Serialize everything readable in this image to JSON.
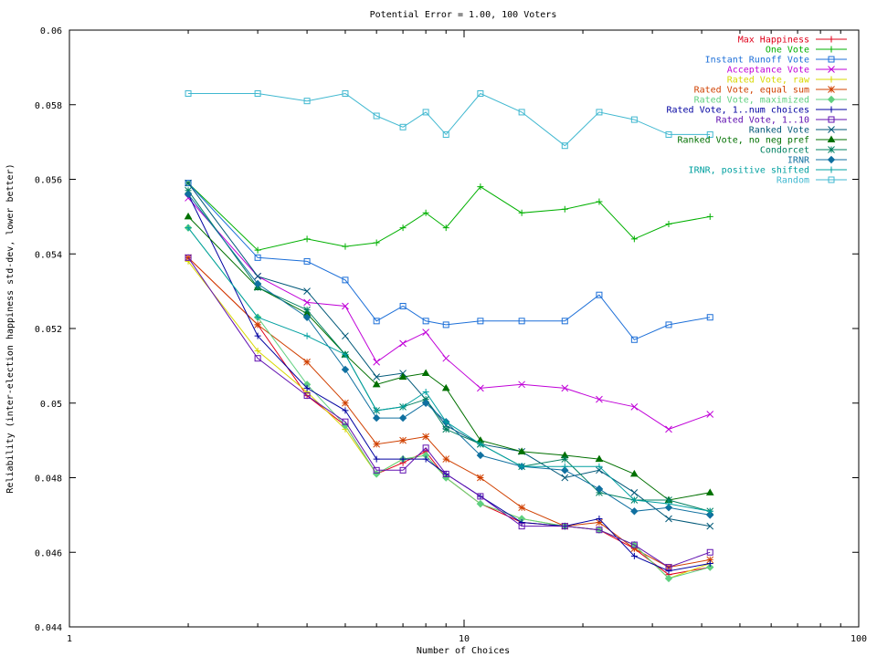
{
  "chart_data": {
    "type": "line",
    "title": "Potential Error = 1.00, 100 Voters",
    "xlabel": "Number of Choices",
    "ylabel": "Reliability (inter-election happiness std-dev, lower better)",
    "xscale": "log",
    "xlim": [
      1,
      100
    ],
    "ylim": [
      0.044,
      0.06
    ],
    "xticks": [
      "1",
      "10",
      "100"
    ],
    "yticks": [
      "0.044",
      "0.046",
      "0.048",
      "0.05",
      "0.052",
      "0.054",
      "0.056",
      "0.058",
      "0.06"
    ],
    "grid": false,
    "legend_position": "top-right",
    "x": [
      2,
      3,
      4,
      5,
      6,
      7,
      8,
      9,
      11,
      14,
      18,
      22,
      27,
      33,
      42
    ],
    "series": [
      {
        "name": "Max Happiness",
        "color": "#e0001a",
        "marker": "plus",
        "values": [
          0.0539,
          0.0521,
          0.0502,
          0.0494,
          0.0481,
          0.0484,
          0.0487,
          0.048,
          0.0473,
          0.0468,
          0.0467,
          0.0466,
          0.0461,
          0.0454,
          0.0456
        ]
      },
      {
        "name": "One Vote",
        "color": "#00b000",
        "marker": "plus",
        "values": [
          0.0559,
          0.0541,
          0.0544,
          0.0542,
          0.0543,
          0.0547,
          0.0551,
          0.0547,
          0.0558,
          0.0551,
          0.0552,
          0.0554,
          0.0544,
          0.0548,
          0.055
        ]
      },
      {
        "name": "Instant Runoff Vote",
        "color": "#1c6fd8",
        "marker": "square",
        "values": [
          0.0559,
          0.0539,
          0.0538,
          0.0533,
          0.0522,
          0.0526,
          0.0522,
          0.0521,
          0.0522,
          0.0522,
          0.0522,
          0.0529,
          0.0517,
          0.0521,
          0.0523
        ]
      },
      {
        "name": "Acceptance Vote",
        "color": "#c000d8",
        "marker": "x",
        "values": [
          0.0555,
          0.0534,
          0.0527,
          0.0526,
          0.0511,
          0.0516,
          0.0519,
          0.0512,
          0.0504,
          0.0505,
          0.0504,
          0.0501,
          0.0499,
          0.0493,
          0.0497
        ]
      },
      {
        "name": "Rated Vote, raw",
        "color": "#d8d800",
        "marker": "plus",
        "values": [
          0.0538,
          0.0514,
          0.0503,
          0.0493,
          0.0481,
          0.0485,
          0.0486,
          0.048,
          0.0473,
          0.0469,
          0.0467,
          0.0466,
          0.0462,
          0.0453,
          0.0457
        ]
      },
      {
        "name": "Rated Vote, equal sum",
        "color": "#d04000",
        "marker": "star",
        "values": [
          0.0539,
          0.0521,
          0.0511,
          0.05,
          0.0489,
          0.049,
          0.0491,
          0.0485,
          0.048,
          0.0472,
          0.0467,
          0.0468,
          0.0461,
          0.0456,
          0.0458
        ]
      },
      {
        "name": "Rated Vote, maximized",
        "color": "#60d080",
        "marker": "diamond",
        "values": [
          0.0547,
          0.0523,
          0.0505,
          0.0494,
          0.0481,
          0.0485,
          0.0486,
          0.048,
          0.0473,
          0.0469,
          0.0467,
          0.0466,
          0.0462,
          0.0453,
          0.0456
        ]
      },
      {
        "name": "Rated Vote, 1..num choices",
        "color": "#0000a0",
        "marker": "plus",
        "values": [
          0.0556,
          0.0518,
          0.0504,
          0.0498,
          0.0485,
          0.0485,
          0.0485,
          0.0481,
          0.0475,
          0.0468,
          0.0467,
          0.0469,
          0.0459,
          0.0455,
          0.0457
        ]
      },
      {
        "name": "Rated Vote, 1..10",
        "color": "#6010b0",
        "marker": "square",
        "values": [
          0.0539,
          0.0512,
          0.0502,
          0.0495,
          0.0482,
          0.0482,
          0.0488,
          0.0481,
          0.0475,
          0.0467,
          0.0467,
          0.0466,
          0.0462,
          0.0456,
          0.046
        ]
      },
      {
        "name": "Ranked Vote",
        "color": "#005878",
        "marker": "x",
        "values": [
          0.0559,
          0.0534,
          0.053,
          0.0518,
          0.0507,
          0.0508,
          0.0501,
          0.0494,
          0.0489,
          0.0487,
          0.048,
          0.0482,
          0.0476,
          0.0469,
          0.0467
        ]
      },
      {
        "name": "Ranked Vote, no neg pref",
        "color": "#007000",
        "marker": "triangle",
        "values": [
          0.055,
          0.0531,
          0.0524,
          0.0513,
          0.0505,
          0.0507,
          0.0508,
          0.0504,
          0.049,
          0.0487,
          0.0486,
          0.0485,
          0.0481,
          0.0474,
          0.0476
        ]
      },
      {
        "name": "Condorcet",
        "color": "#008060",
        "marker": "star",
        "values": [
          0.0557,
          0.0531,
          0.0525,
          0.0513,
          0.0498,
          0.0499,
          0.0501,
          0.0493,
          0.0489,
          0.0483,
          0.0485,
          0.0476,
          0.0474,
          0.0474,
          0.0471
        ]
      },
      {
        "name": "IRNR",
        "color": "#1070a0",
        "marker": "diamond",
        "values": [
          0.0556,
          0.0532,
          0.0523,
          0.0509,
          0.0496,
          0.0496,
          0.05,
          0.0495,
          0.0486,
          0.0483,
          0.0482,
          0.0477,
          0.0471,
          0.0472,
          0.047
        ]
      },
      {
        "name": "IRNR, positive shifted",
        "color": "#00a0a0",
        "marker": "plus",
        "values": [
          0.0547,
          0.0523,
          0.0518,
          0.0513,
          0.0498,
          0.0499,
          0.0503,
          0.0495,
          0.0489,
          0.0483,
          0.0483,
          0.0483,
          0.0474,
          0.0473,
          0.0471
        ]
      },
      {
        "name": "Random",
        "color": "#40b8d0",
        "marker": "square",
        "values": [
          0.0583,
          0.0583,
          0.0581,
          0.0583,
          0.0577,
          0.0574,
          0.0578,
          0.0572,
          0.0583,
          0.0578,
          0.0569,
          0.0578,
          0.0576,
          0.0572,
          0.0572
        ]
      }
    ]
  }
}
